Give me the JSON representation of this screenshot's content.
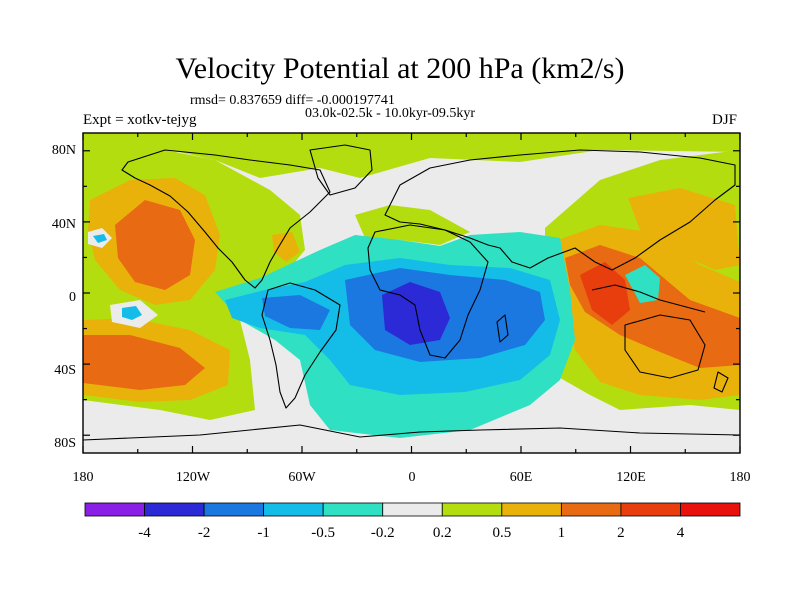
{
  "header": {
    "title": "Velocity Potential at 200 hPa (km2/s)",
    "stats": "rmsd= 0.837659 diff= -0.000197741",
    "period": "03.0k-02.5k - 10.0kyr-09.5kyr",
    "experiment": "Expt = xotkv-tejyg",
    "season": "DJF"
  },
  "axes": {
    "lat_labels": [
      "80N",
      "40N",
      "0",
      "40S",
      "80S"
    ],
    "lon_labels": [
      "180",
      "120W",
      "60W",
      "0",
      "60E",
      "120E",
      "180"
    ]
  },
  "legend": {
    "labels": [
      "-4",
      "-2",
      "-1",
      "-0.5",
      "-0.2",
      "0.2",
      "0.5",
      "1",
      "2",
      "4"
    ],
    "colors": [
      "#8a20e6",
      "#2b2ad6",
      "#1b78e0",
      "#14bde8",
      "#2fe0c2",
      "#ebebeb",
      "#b4dd10",
      "#e8b20a",
      "#e86a12",
      "#e83d0c",
      "#e8110c"
    ]
  },
  "chart_data": {
    "type": "heatmap",
    "title": "Velocity Potential at 200 hPa (km2/s)",
    "region": "global",
    "lon_range": [
      -180,
      180
    ],
    "lat_range": [
      -90,
      90
    ],
    "levels": [
      -4,
      -2,
      -1,
      -0.5,
      -0.2,
      0.2,
      0.5,
      1,
      2,
      4
    ],
    "features": [
      {
        "region": "central Africa / equatorial Atlantic",
        "lon": 0,
        "lat": -5,
        "value": -2.2
      },
      {
        "region": "Atlantic-Africa-Indian Ocean",
        "lon": 30,
        "lat": -10,
        "value": -1.2
      },
      {
        "region": "tropical South America",
        "lon": -60,
        "lat": -5,
        "value": -0.8
      },
      {
        "region": "South Atlantic / Southern Ocean",
        "lon": 10,
        "lat": -45,
        "value": -0.35
      },
      {
        "region": "Maritime Continent",
        "lon": 110,
        "lat": 0,
        "value": 2.3
      },
      {
        "region": "Australia",
        "lon": 140,
        "lat": -25,
        "value": 1.4
      },
      {
        "region": "eastern South Pacific",
        "lon": -150,
        "lat": -30,
        "value": 1.5
      },
      {
        "region": "northeastern Pacific",
        "lon": -135,
        "lat": 25,
        "value": 1.3
      },
      {
        "region": "North Pacific",
        "lon": 160,
        "lat": 35,
        "value": 0.8
      },
      {
        "region": "Arctic",
        "lon": 0,
        "lat": 80,
        "value": 0.35
      },
      {
        "region": "Eurasia",
        "lon": 60,
        "lat": 50,
        "value": 0.0
      }
    ]
  }
}
